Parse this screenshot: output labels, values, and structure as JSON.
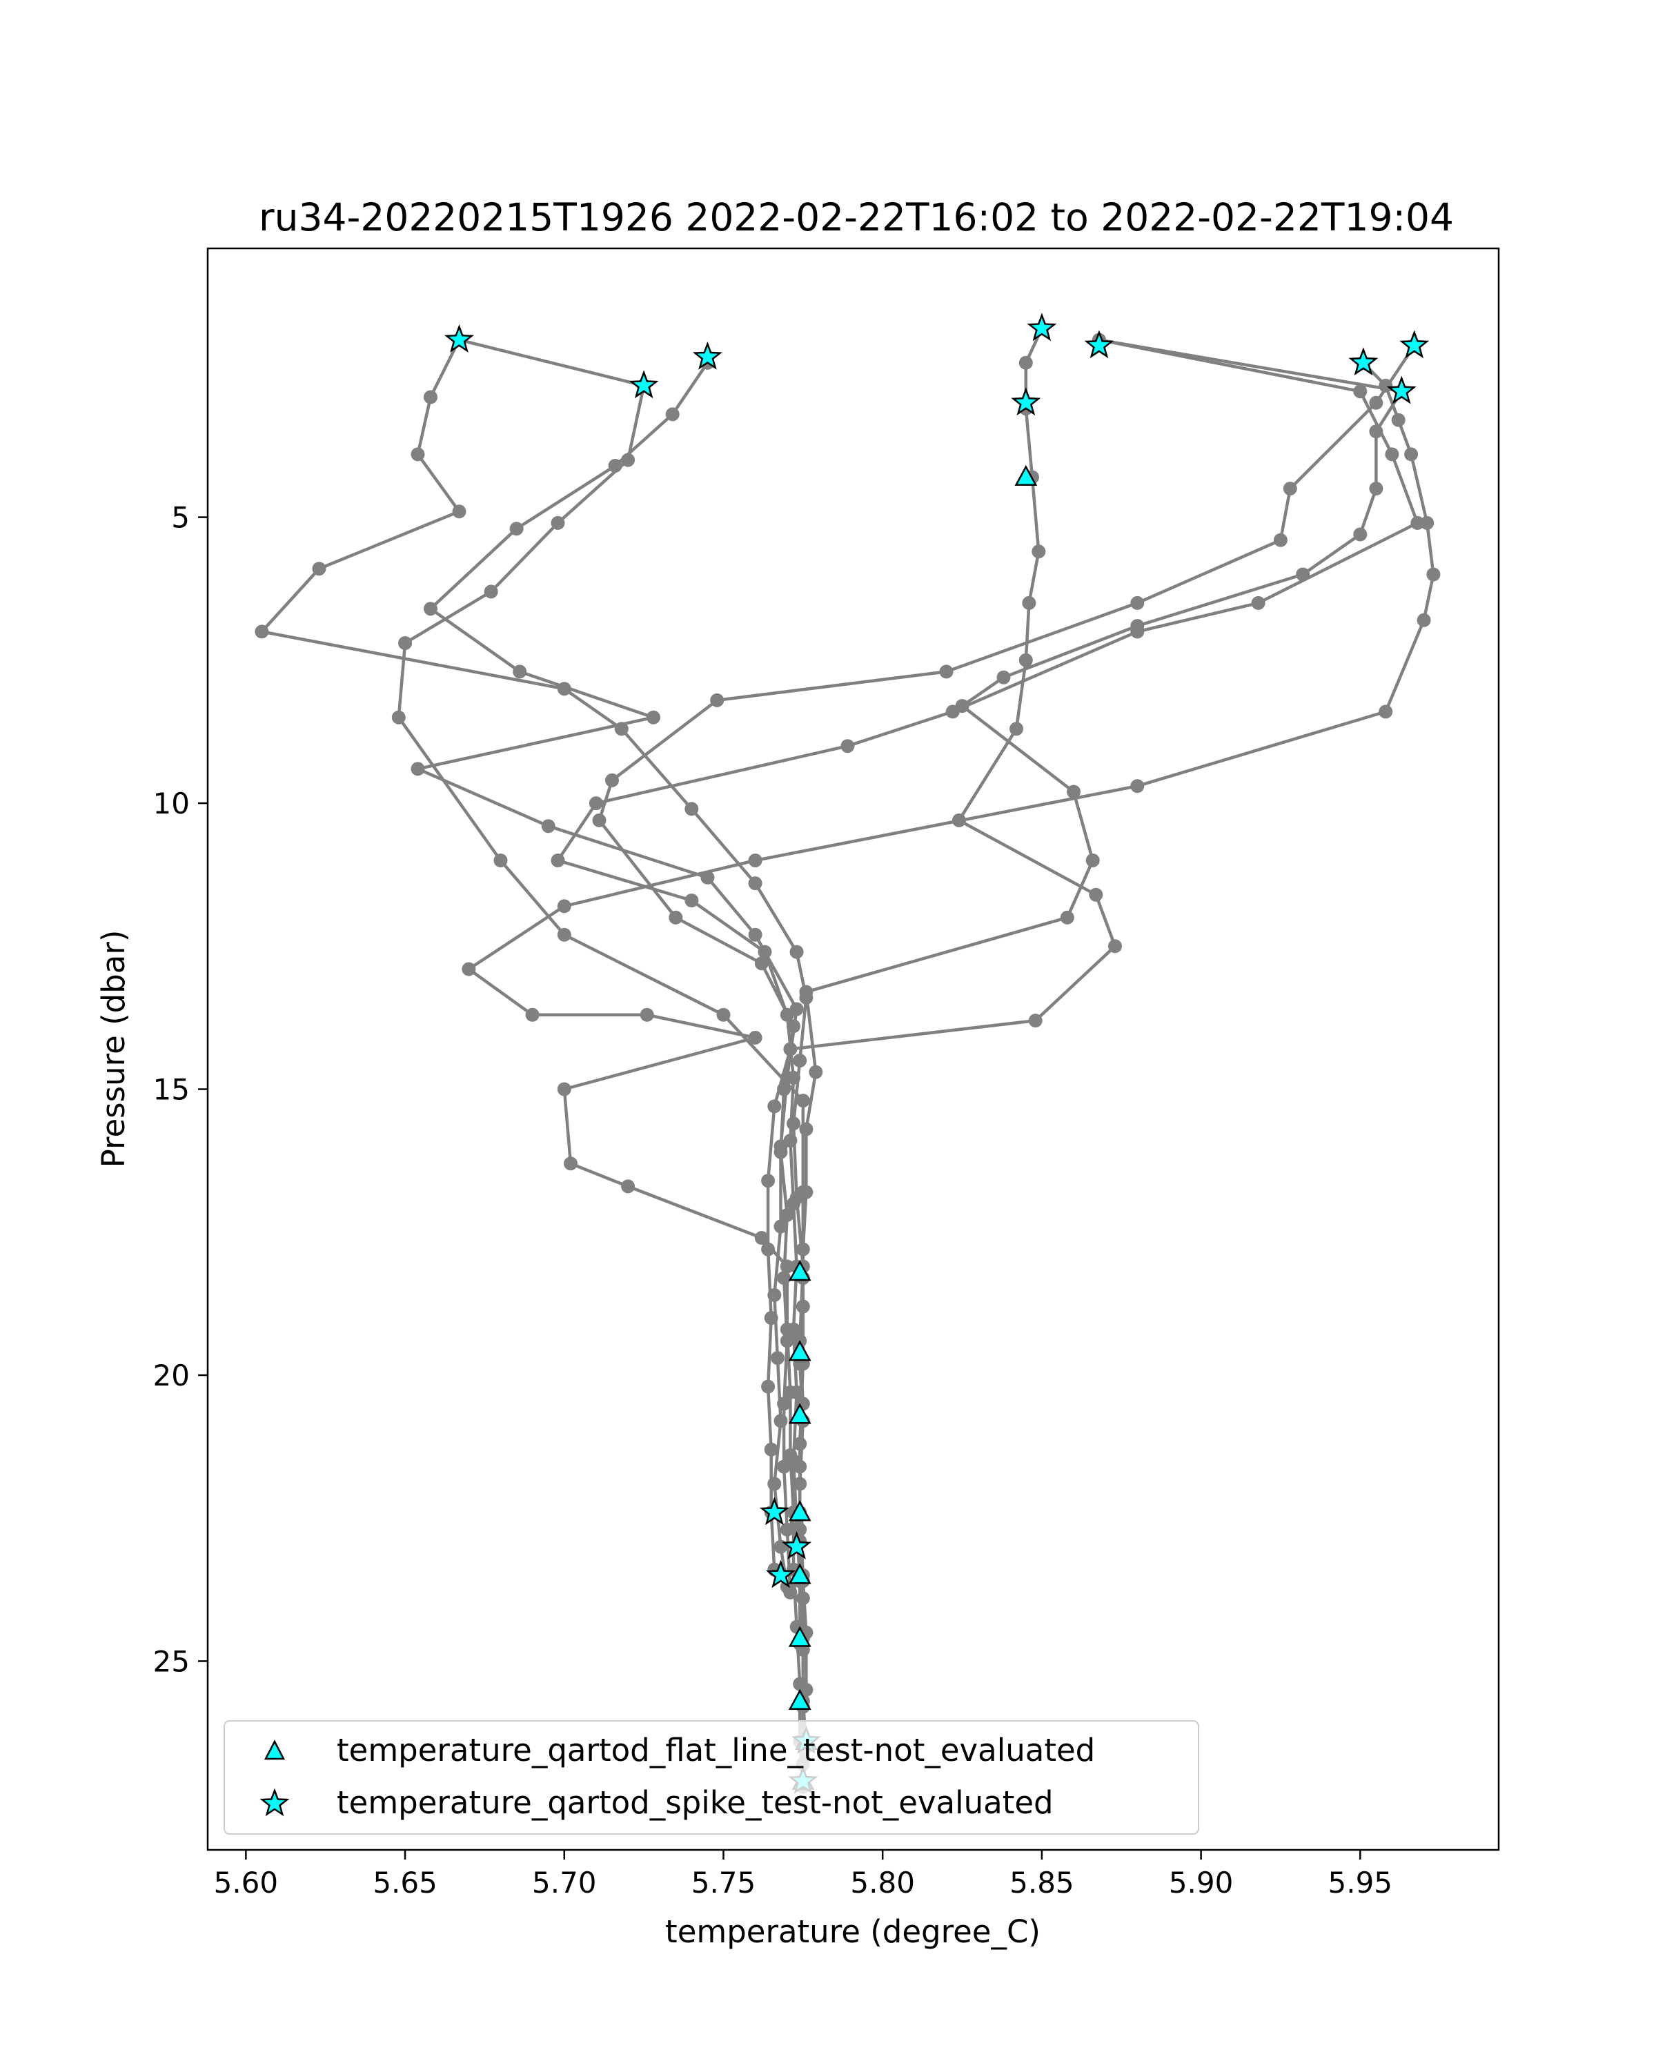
{
  "chart_data": {
    "type": "scatter",
    "title": "ru34-20220215T1926 2022-02-22T16:02 to 2022-02-22T19:04",
    "xlabel": "temperature (degree_C)",
    "ylabel": "Pressure (dbar)",
    "xlim": [
      5.588,
      5.9935
    ],
    "ylim": [
      28.3,
      0.3
    ],
    "y_inverted": true,
    "xticks": [
      5.6,
      5.65,
      5.7,
      5.75,
      5.8,
      5.85,
      5.9,
      5.95
    ],
    "xtick_labels": [
      "5.60",
      "5.65",
      "5.70",
      "5.75",
      "5.80",
      "5.85",
      "5.90",
      "5.95"
    ],
    "yticks": [
      5,
      10,
      15,
      20,
      25
    ],
    "ytick_labels": [
      "5",
      "10",
      "15",
      "20",
      "25"
    ],
    "grid": false,
    "legend_position": "lower-left",
    "colors": {
      "profile_line": "#808080",
      "marker_fill": "#00ffff",
      "marker_edge": "#000000"
    },
    "series": [
      {
        "marker": "circle",
        "points": [
          [
            5.667,
            1.9
          ],
          [
            5.725,
            2.7
          ],
          [
            5.72,
            4.0
          ],
          [
            5.698,
            5.1
          ],
          [
            5.677,
            6.3
          ],
          [
            5.65,
            7.2
          ],
          [
            5.648,
            8.5
          ],
          [
            5.68,
            11.0
          ],
          [
            5.7,
            12.3
          ],
          [
            5.75,
            13.7
          ],
          [
            5.775,
            15.2
          ],
          [
            5.775,
            16.8
          ],
          [
            5.775,
            18.3
          ],
          [
            5.775,
            19.8
          ],
          [
            5.774,
            21.2
          ],
          [
            5.774,
            22.4
          ],
          [
            5.775,
            23.5
          ],
          [
            5.775,
            24.6
          ],
          [
            5.775,
            25.7
          ],
          [
            5.776,
            26.5
          ],
          [
            5.775,
            27.2
          ]
        ]
      },
      {
        "marker": "circle",
        "points": [
          [
            5.667,
            1.9
          ],
          [
            5.658,
            2.9
          ],
          [
            5.654,
            3.9
          ],
          [
            5.667,
            4.9
          ],
          [
            5.623,
            5.9
          ],
          [
            5.605,
            7.0
          ],
          [
            5.7,
            8.0
          ],
          [
            5.718,
            8.7
          ],
          [
            5.74,
            10.1
          ],
          [
            5.76,
            11.4
          ],
          [
            5.773,
            12.6
          ],
          [
            5.776,
            13.4
          ],
          [
            5.774,
            14.5
          ],
          [
            5.772,
            15.6
          ],
          [
            5.773,
            16.9
          ],
          [
            5.775,
            18.1
          ],
          [
            5.774,
            19.4
          ],
          [
            5.775,
            20.5
          ],
          [
            5.774,
            21.6
          ],
          [
            5.774,
            22.7
          ],
          [
            5.775,
            23.6
          ],
          [
            5.776,
            24.5
          ],
          [
            5.776,
            25.5
          ]
        ]
      },
      {
        "marker": "circle",
        "points": [
          [
            5.745,
            2.3
          ],
          [
            5.734,
            3.2
          ],
          [
            5.716,
            4.1
          ],
          [
            5.685,
            5.2
          ],
          [
            5.658,
            6.6
          ],
          [
            5.686,
            7.7
          ],
          [
            5.728,
            8.5
          ],
          [
            5.654,
            9.4
          ],
          [
            5.695,
            10.4
          ],
          [
            5.745,
            11.3
          ],
          [
            5.76,
            12.3
          ],
          [
            5.773,
            13.6
          ],
          [
            5.77,
            14.8
          ],
          [
            5.768,
            16.0
          ],
          [
            5.768,
            17.4
          ],
          [
            5.766,
            18.6
          ],
          [
            5.767,
            19.7
          ],
          [
            5.768,
            20.8
          ],
          [
            5.766,
            21.9
          ],
          [
            5.768,
            23.0
          ],
          [
            5.77,
            23.7
          ]
        ]
      },
      {
        "marker": "circle",
        "points": [
          [
            5.85,
            1.7
          ],
          [
            5.845,
            2.3
          ],
          [
            5.845,
            3.1
          ],
          [
            5.847,
            4.3
          ],
          [
            5.849,
            5.6
          ],
          [
            5.846,
            6.5
          ],
          [
            5.845,
            7.5
          ],
          [
            5.842,
            8.7
          ],
          [
            5.824,
            10.3
          ],
          [
            5.867,
            11.6
          ],
          [
            5.873,
            12.5
          ],
          [
            5.848,
            13.8
          ],
          [
            5.771,
            14.3
          ],
          [
            5.766,
            15.3
          ],
          [
            5.764,
            16.6
          ],
          [
            5.764,
            17.8
          ],
          [
            5.765,
            19.0
          ],
          [
            5.764,
            20.2
          ],
          [
            5.765,
            21.3
          ],
          [
            5.765,
            22.4
          ],
          [
            5.766,
            23.4
          ]
        ]
      },
      {
        "marker": "circle",
        "points": [
          [
            5.868,
            1.9
          ],
          [
            5.95,
            2.8
          ],
          [
            5.96,
            3.9
          ],
          [
            5.968,
            5.1
          ],
          [
            5.918,
            6.5
          ],
          [
            5.88,
            7.0
          ],
          [
            5.822,
            8.4
          ],
          [
            5.789,
            9.0
          ],
          [
            5.71,
            10.0
          ],
          [
            5.698,
            11.0
          ],
          [
            5.74,
            11.7
          ],
          [
            5.763,
            12.6
          ],
          [
            5.77,
            13.7
          ],
          [
            5.772,
            14.8
          ],
          [
            5.771,
            15.9
          ],
          [
            5.772,
            17.0
          ],
          [
            5.773,
            18.1
          ],
          [
            5.772,
            19.2
          ],
          [
            5.773,
            20.3
          ],
          [
            5.772,
            21.5
          ],
          [
            5.773,
            22.6
          ],
          [
            5.774,
            23.6
          ],
          [
            5.774,
            24.7
          ]
        ]
      },
      {
        "marker": "circle",
        "points": [
          [
            5.868,
            1.9
          ],
          [
            5.963,
            2.8
          ],
          [
            5.955,
            3.5
          ],
          [
            5.955,
            4.5
          ],
          [
            5.95,
            5.3
          ],
          [
            5.932,
            6.0
          ],
          [
            5.88,
            6.9
          ],
          [
            5.838,
            7.8
          ],
          [
            5.825,
            8.3
          ],
          [
            5.86,
            9.8
          ],
          [
            5.866,
            11.0
          ],
          [
            5.858,
            12.0
          ],
          [
            5.776,
            13.3
          ],
          [
            5.779,
            14.7
          ],
          [
            5.776,
            15.7
          ],
          [
            5.776,
            16.8
          ],
          [
            5.775,
            17.8
          ],
          [
            5.775,
            18.8
          ],
          [
            5.774,
            19.8
          ],
          [
            5.775,
            20.8
          ],
          [
            5.774,
            21.9
          ],
          [
            5.774,
            22.9
          ],
          [
            5.775,
            23.9
          ],
          [
            5.775,
            24.8
          ],
          [
            5.775,
            25.8
          ],
          [
            5.775,
            26.8
          ]
        ]
      },
      {
        "marker": "circle",
        "points": [
          [
            5.967,
            2.0
          ],
          [
            5.955,
            3.0
          ],
          [
            5.928,
            4.5
          ],
          [
            5.925,
            5.4
          ],
          [
            5.88,
            6.5
          ],
          [
            5.82,
            7.7
          ],
          [
            5.748,
            8.2
          ],
          [
            5.715,
            9.6
          ],
          [
            5.711,
            10.3
          ],
          [
            5.735,
            12.0
          ],
          [
            5.762,
            12.8
          ],
          [
            5.772,
            13.9
          ],
          [
            5.769,
            15.0
          ],
          [
            5.768,
            16.1
          ],
          [
            5.77,
            17.2
          ],
          [
            5.769,
            18.3
          ],
          [
            5.77,
            19.4
          ],
          [
            5.769,
            20.5
          ],
          [
            5.769,
            21.6
          ],
          [
            5.77,
            22.7
          ],
          [
            5.771,
            23.8
          ]
        ]
      },
      {
        "marker": "circle",
        "points": [
          [
            5.951,
            2.3
          ],
          [
            5.958,
            2.7
          ],
          [
            5.962,
            3.3
          ],
          [
            5.966,
            3.9
          ],
          [
            5.971,
            5.1
          ],
          [
            5.973,
            6.0
          ],
          [
            5.97,
            6.8
          ],
          [
            5.958,
            8.4
          ],
          [
            5.88,
            9.7
          ],
          [
            5.76,
            11.0
          ],
          [
            5.7,
            11.8
          ],
          [
            5.67,
            12.9
          ],
          [
            5.69,
            13.7
          ],
          [
            5.726,
            13.7
          ],
          [
            5.76,
            14.1
          ],
          [
            5.7,
            15.0
          ],
          [
            5.702,
            16.3
          ],
          [
            5.72,
            16.7
          ],
          [
            5.762,
            17.6
          ],
          [
            5.77,
            18.1
          ],
          [
            5.77,
            19.2
          ],
          [
            5.771,
            20.3
          ],
          [
            5.771,
            21.4
          ],
          [
            5.772,
            22.4
          ],
          [
            5.772,
            23.4
          ],
          [
            5.773,
            24.4
          ],
          [
            5.774,
            25.4
          ],
          [
            5.774,
            26.4
          ],
          [
            5.775,
            27.2
          ]
        ]
      }
    ],
    "flags": [
      {
        "name": "temperature_qartod_flat_line_test-not_evaluated",
        "marker": "triangle",
        "points": [
          [
            5.845,
            4.3
          ],
          [
            5.774,
            18.2
          ],
          [
            5.774,
            19.6
          ],
          [
            5.774,
            20.7
          ],
          [
            5.774,
            22.4
          ],
          [
            5.774,
            23.5
          ],
          [
            5.774,
            24.6
          ],
          [
            5.774,
            25.7
          ],
          [
            5.776,
            26.4
          ],
          [
            5.775,
            27.1
          ]
        ]
      },
      {
        "name": "temperature_qartod_spike_test-not_evaluated",
        "marker": "star",
        "points": [
          [
            5.667,
            1.9
          ],
          [
            5.725,
            2.7
          ],
          [
            5.745,
            2.2
          ],
          [
            5.85,
            1.7
          ],
          [
            5.868,
            2.0
          ],
          [
            5.845,
            3.0
          ],
          [
            5.951,
            2.3
          ],
          [
            5.967,
            2.0
          ],
          [
            5.963,
            2.8
          ],
          [
            5.766,
            22.4
          ],
          [
            5.773,
            23.0
          ],
          [
            5.768,
            23.5
          ],
          [
            5.776,
            26.4
          ],
          [
            5.775,
            27.1
          ]
        ]
      }
    ]
  }
}
